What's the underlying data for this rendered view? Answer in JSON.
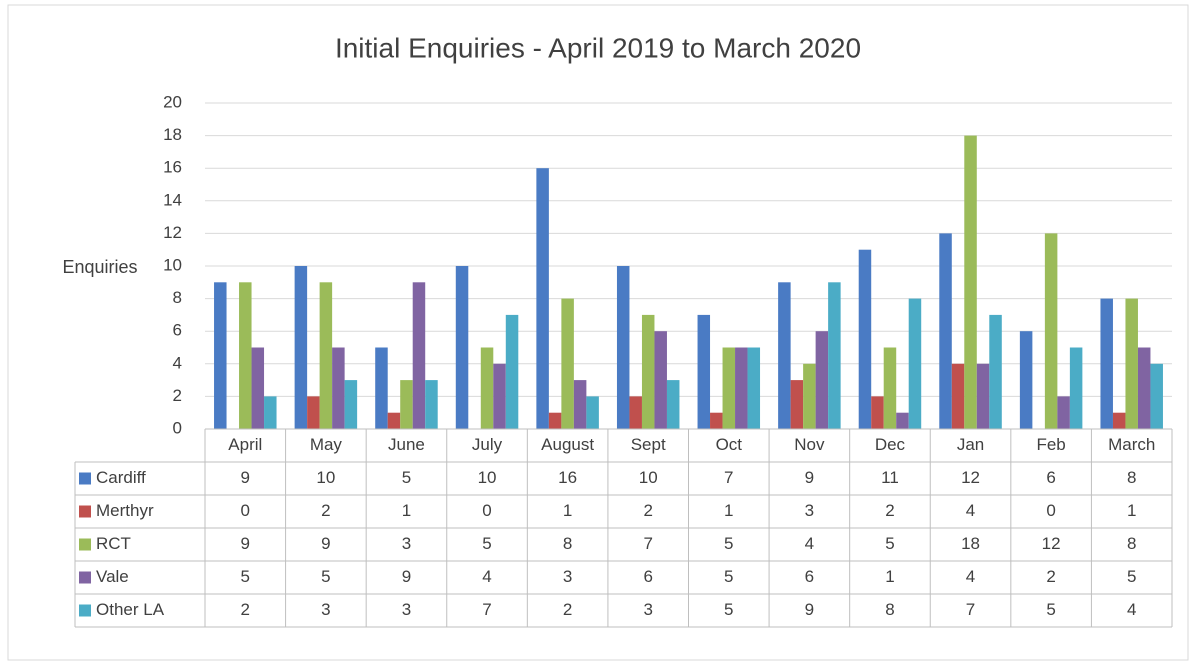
{
  "chart_data": {
    "type": "bar",
    "title": "Initial Enquiries - April 2019 to March 2020",
    "y_label": "Enquiries",
    "categories": [
      "April",
      "May",
      "June",
      "July",
      "August",
      "Sept",
      "Oct",
      "Nov",
      "Dec",
      "Jan",
      "Feb",
      "March"
    ],
    "series": [
      {
        "name": "Cardiff",
        "color": "#4a7bc4",
        "values": [
          9,
          10,
          5,
          10,
          16,
          10,
          7,
          9,
          11,
          12,
          6,
          8
        ]
      },
      {
        "name": "Merthyr",
        "color": "#c0504d",
        "values": [
          0,
          2,
          1,
          0,
          1,
          2,
          1,
          3,
          2,
          4,
          0,
          1
        ]
      },
      {
        "name": "RCT",
        "color": "#9bbb59",
        "values": [
          9,
          9,
          3,
          5,
          8,
          7,
          5,
          4,
          5,
          18,
          12,
          8
        ]
      },
      {
        "name": "Vale",
        "color": "#8064a2",
        "values": [
          5,
          5,
          9,
          4,
          3,
          6,
          5,
          6,
          1,
          4,
          2,
          5
        ]
      },
      {
        "name": "Other LA",
        "color": "#4bacc6",
        "values": [
          2,
          3,
          3,
          7,
          2,
          3,
          5,
          9,
          8,
          7,
          5,
          4
        ]
      }
    ],
    "ylim": [
      0,
      20
    ],
    "yticks": [
      0,
      2,
      4,
      6,
      8,
      10,
      12,
      14,
      16,
      18,
      20
    ],
    "grid": true,
    "data_table": true
  }
}
